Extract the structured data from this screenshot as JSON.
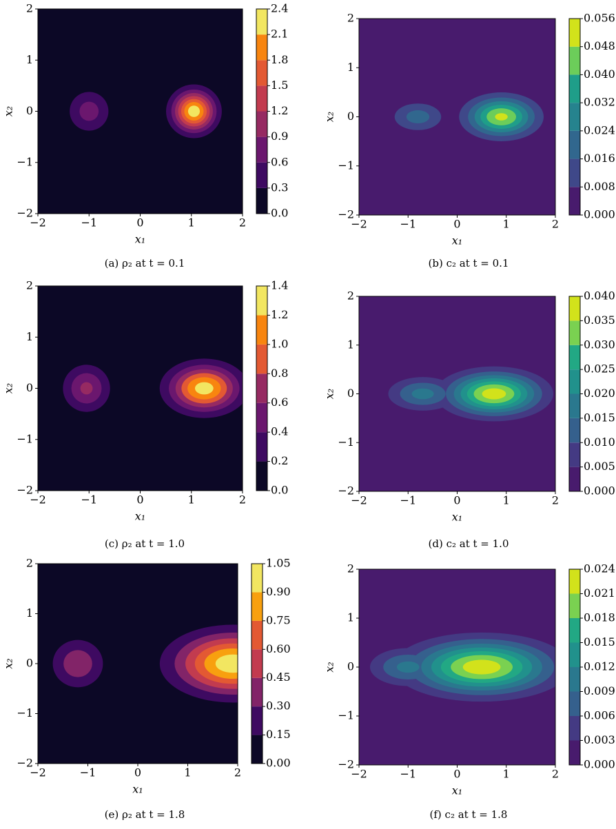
{
  "chart_data": [
    {
      "type": "contour",
      "caption": "(a) ρ₂ at t = 0.1",
      "xlabel": "x₁",
      "ylabel": "x₂",
      "xlim": [
        -2,
        2
      ],
      "ylim": [
        -2,
        2
      ],
      "xticks": [
        {
          "value": -2,
          "label": "−2"
        },
        {
          "value": -1,
          "label": "−1"
        },
        0,
        1,
        2
      ],
      "yticks": [
        {
          "value": -2,
          "label": "−2"
        },
        {
          "value": -1,
          "label": "−1"
        },
        0,
        1,
        2
      ],
      "zlim": [
        0,
        2.4
      ],
      "zticks": [
        {
          "value": 0,
          "label": "0.0"
        },
        0.3,
        0.6,
        0.9,
        1.2,
        1.5,
        1.8,
        2.1,
        2.4
      ],
      "colors": [
        "#0c0826",
        "#3e0a61",
        "#6b176e",
        "#962a62",
        "#c23b4f",
        "#e35933",
        "#f8850f",
        "#f2e661"
      ],
      "sources": [
        {
          "x": -1,
          "y": 0,
          "amplitude": 0.75,
          "sx": 0.28,
          "sy": 0.28
        },
        {
          "x": 1.05,
          "y": 0,
          "amplitude": 2.3,
          "sx": 0.27,
          "sy": 0.26
        }
      ]
    },
    {
      "type": "contour",
      "caption": "(b) c₂ at t = 0.1",
      "xlabel": "x₁",
      "ylabel": "x₂",
      "xlim": [
        -2,
        2
      ],
      "ylim": [
        -2,
        2
      ],
      "xticks": [
        {
          "value": -2,
          "label": "−2"
        },
        {
          "value": -1,
          "label": "−1"
        },
        0,
        1,
        2
      ],
      "yticks": [
        {
          "value": -2,
          "label": "−2"
        },
        {
          "value": -1,
          "label": "−1"
        },
        0,
        1,
        2
      ],
      "zlim": [
        0,
        0.056
      ],
      "zticks": [
        {
          "value": 0,
          "label": "0.000"
        },
        0.008,
        0.016,
        0.024,
        0.032,
        {
          "value": 0.04,
          "label": "0.040"
        },
        0.048,
        0.056
      ],
      "colors": [
        "#481b6d",
        "#3f4889",
        "#31678e",
        "#26838e",
        "#1f9e89",
        "#6ccd5a",
        "#d2e21b"
      ],
      "sources": [
        {
          "x": 0.9,
          "y": 0,
          "amplitude": 0.05,
          "sx": 0.45,
          "sy": 0.26
        },
        {
          "x": -0.8,
          "y": 0,
          "amplitude": 0.02,
          "sx": 0.35,
          "sy": 0.2
        }
      ]
    },
    {
      "type": "contour",
      "caption": "(c) ρ₂ at t = 1.0",
      "xlabel": "x₁",
      "ylabel": "x₂",
      "xlim": [
        -2,
        2
      ],
      "ylim": [
        -2,
        2
      ],
      "xticks": [
        {
          "value": -2,
          "label": "−2"
        },
        {
          "value": -1,
          "label": "−1"
        },
        0,
        1,
        2
      ],
      "yticks": [
        {
          "value": -2,
          "label": "−2"
        },
        {
          "value": -1,
          "label": "−1"
        },
        0,
        1,
        2
      ],
      "zlim": [
        0,
        1.4
      ],
      "zticks": [
        {
          "value": 0,
          "label": "0.0"
        },
        0.2,
        0.4,
        0.6,
        0.8,
        {
          "value": 1,
          "label": "1.0"
        },
        1.2,
        1.4
      ],
      "colors": [
        "#0c0826",
        "#3e0a61",
        "#6b176e",
        "#962a62",
        "#e35933",
        "#f8850f",
        "#f2e661"
      ],
      "sources": [
        {
          "x": -1.05,
          "y": 0,
          "amplitude": 0.65,
          "sx": 0.3,
          "sy": 0.3
        },
        {
          "x": 1.25,
          "y": 0,
          "amplitude": 1.3,
          "sx": 0.45,
          "sy": 0.3
        }
      ]
    },
    {
      "type": "contour",
      "caption": "(d) c₂ at t = 1.0",
      "xlabel": "x₁",
      "ylabel": "x₂",
      "xlim": [
        -2,
        2
      ],
      "ylim": [
        -2,
        2
      ],
      "xticks": [
        {
          "value": -2,
          "label": "−2"
        },
        {
          "value": -1,
          "label": "−1"
        },
        0,
        1,
        2
      ],
      "yticks": [
        {
          "value": -2,
          "label": "−2"
        },
        {
          "value": -1,
          "label": "−1"
        },
        0,
        1,
        2
      ],
      "zlim": [
        0,
        0.04
      ],
      "zticks": [
        {
          "value": 0,
          "label": "0.000"
        },
        0.005,
        {
          "value": 0.01,
          "label": "0.010"
        },
        0.015,
        {
          "value": 0.02,
          "label": "0.020"
        },
        0.025,
        {
          "value": 0.03,
          "label": "0.030"
        },
        0.035,
        {
          "value": 0.04,
          "label": "0.040"
        }
      ],
      "colors": [
        "#481b6d",
        "#443a83",
        "#35608d",
        "#2a788e",
        "#21918c",
        "#22a884",
        "#7ad151",
        "#d2e21b"
      ],
      "sources": [
        {
          "x": 0.75,
          "y": 0,
          "amplitude": 0.038,
          "sx": 0.6,
          "sy": 0.28
        },
        {
          "x": -0.7,
          "y": 0,
          "amplitude": 0.017,
          "sx": 0.45,
          "sy": 0.22
        }
      ]
    },
    {
      "type": "contour",
      "caption": "(e) ρ₂ at t = 1.8",
      "xlabel": "x₁",
      "ylabel": "x₂",
      "xlim": [
        -2,
        2
      ],
      "ylim": [
        -2,
        2
      ],
      "xticks": [
        {
          "value": -2,
          "label": "−2"
        },
        {
          "value": -1,
          "label": "−1"
        },
        0,
        1,
        2
      ],
      "yticks": [
        {
          "value": -2,
          "label": "−2"
        },
        {
          "value": -1,
          "label": "−1"
        },
        0,
        1,
        2
      ],
      "zlim": [
        0,
        1.05
      ],
      "zticks": [
        {
          "value": 0,
          "label": "0.00"
        },
        0.15,
        {
          "value": 0.3,
          "label": "0.30"
        },
        0.45,
        {
          "value": 0.6,
          "label": "0.60"
        },
        0.75,
        {
          "value": 0.9,
          "label": "0.90"
        },
        1.05
      ],
      "colors": [
        "#0c0826",
        "#3e0a61",
        "#822468",
        "#c23b4f",
        "#e35933",
        "#f8a00f",
        "#f2e661"
      ],
      "sources": [
        {
          "x": -1.2,
          "y": 0,
          "amplitude": 0.42,
          "sx": 0.35,
          "sy": 0.33
        },
        {
          "x": 1.9,
          "y": 0,
          "amplitude": 1.0,
          "sx": 0.75,
          "sy": 0.4
        }
      ]
    },
    {
      "type": "contour",
      "caption": "(f) c₂ at t = 1.8",
      "xlabel": "x₁",
      "ylabel": "x₂",
      "xlim": [
        -2,
        2
      ],
      "ylim": [
        -2,
        2
      ],
      "xticks": [
        {
          "value": -2,
          "label": "−2"
        },
        {
          "value": -1,
          "label": "−1"
        },
        0,
        1,
        2
      ],
      "yticks": [
        {
          "value": -2,
          "label": "−2"
        },
        {
          "value": -1,
          "label": "−1"
        },
        0,
        1,
        2
      ],
      "zlim": [
        0,
        0.024
      ],
      "zticks": [
        {
          "value": 0,
          "label": "0.000"
        },
        0.003,
        0.006,
        0.009,
        0.012,
        0.015,
        0.018,
        0.021,
        0.024
      ],
      "colors": [
        "#481b6d",
        "#443a83",
        "#35608d",
        "#2a788e",
        "#21918c",
        "#22a884",
        "#7ad151",
        "#d2e21b"
      ],
      "sources": [
        {
          "x": 0.5,
          "y": 0,
          "amplitude": 0.023,
          "sx": 0.9,
          "sy": 0.35
        },
        {
          "x": -1.0,
          "y": 0,
          "amplitude": 0.01,
          "sx": 0.5,
          "sy": 0.25
        }
      ]
    }
  ]
}
